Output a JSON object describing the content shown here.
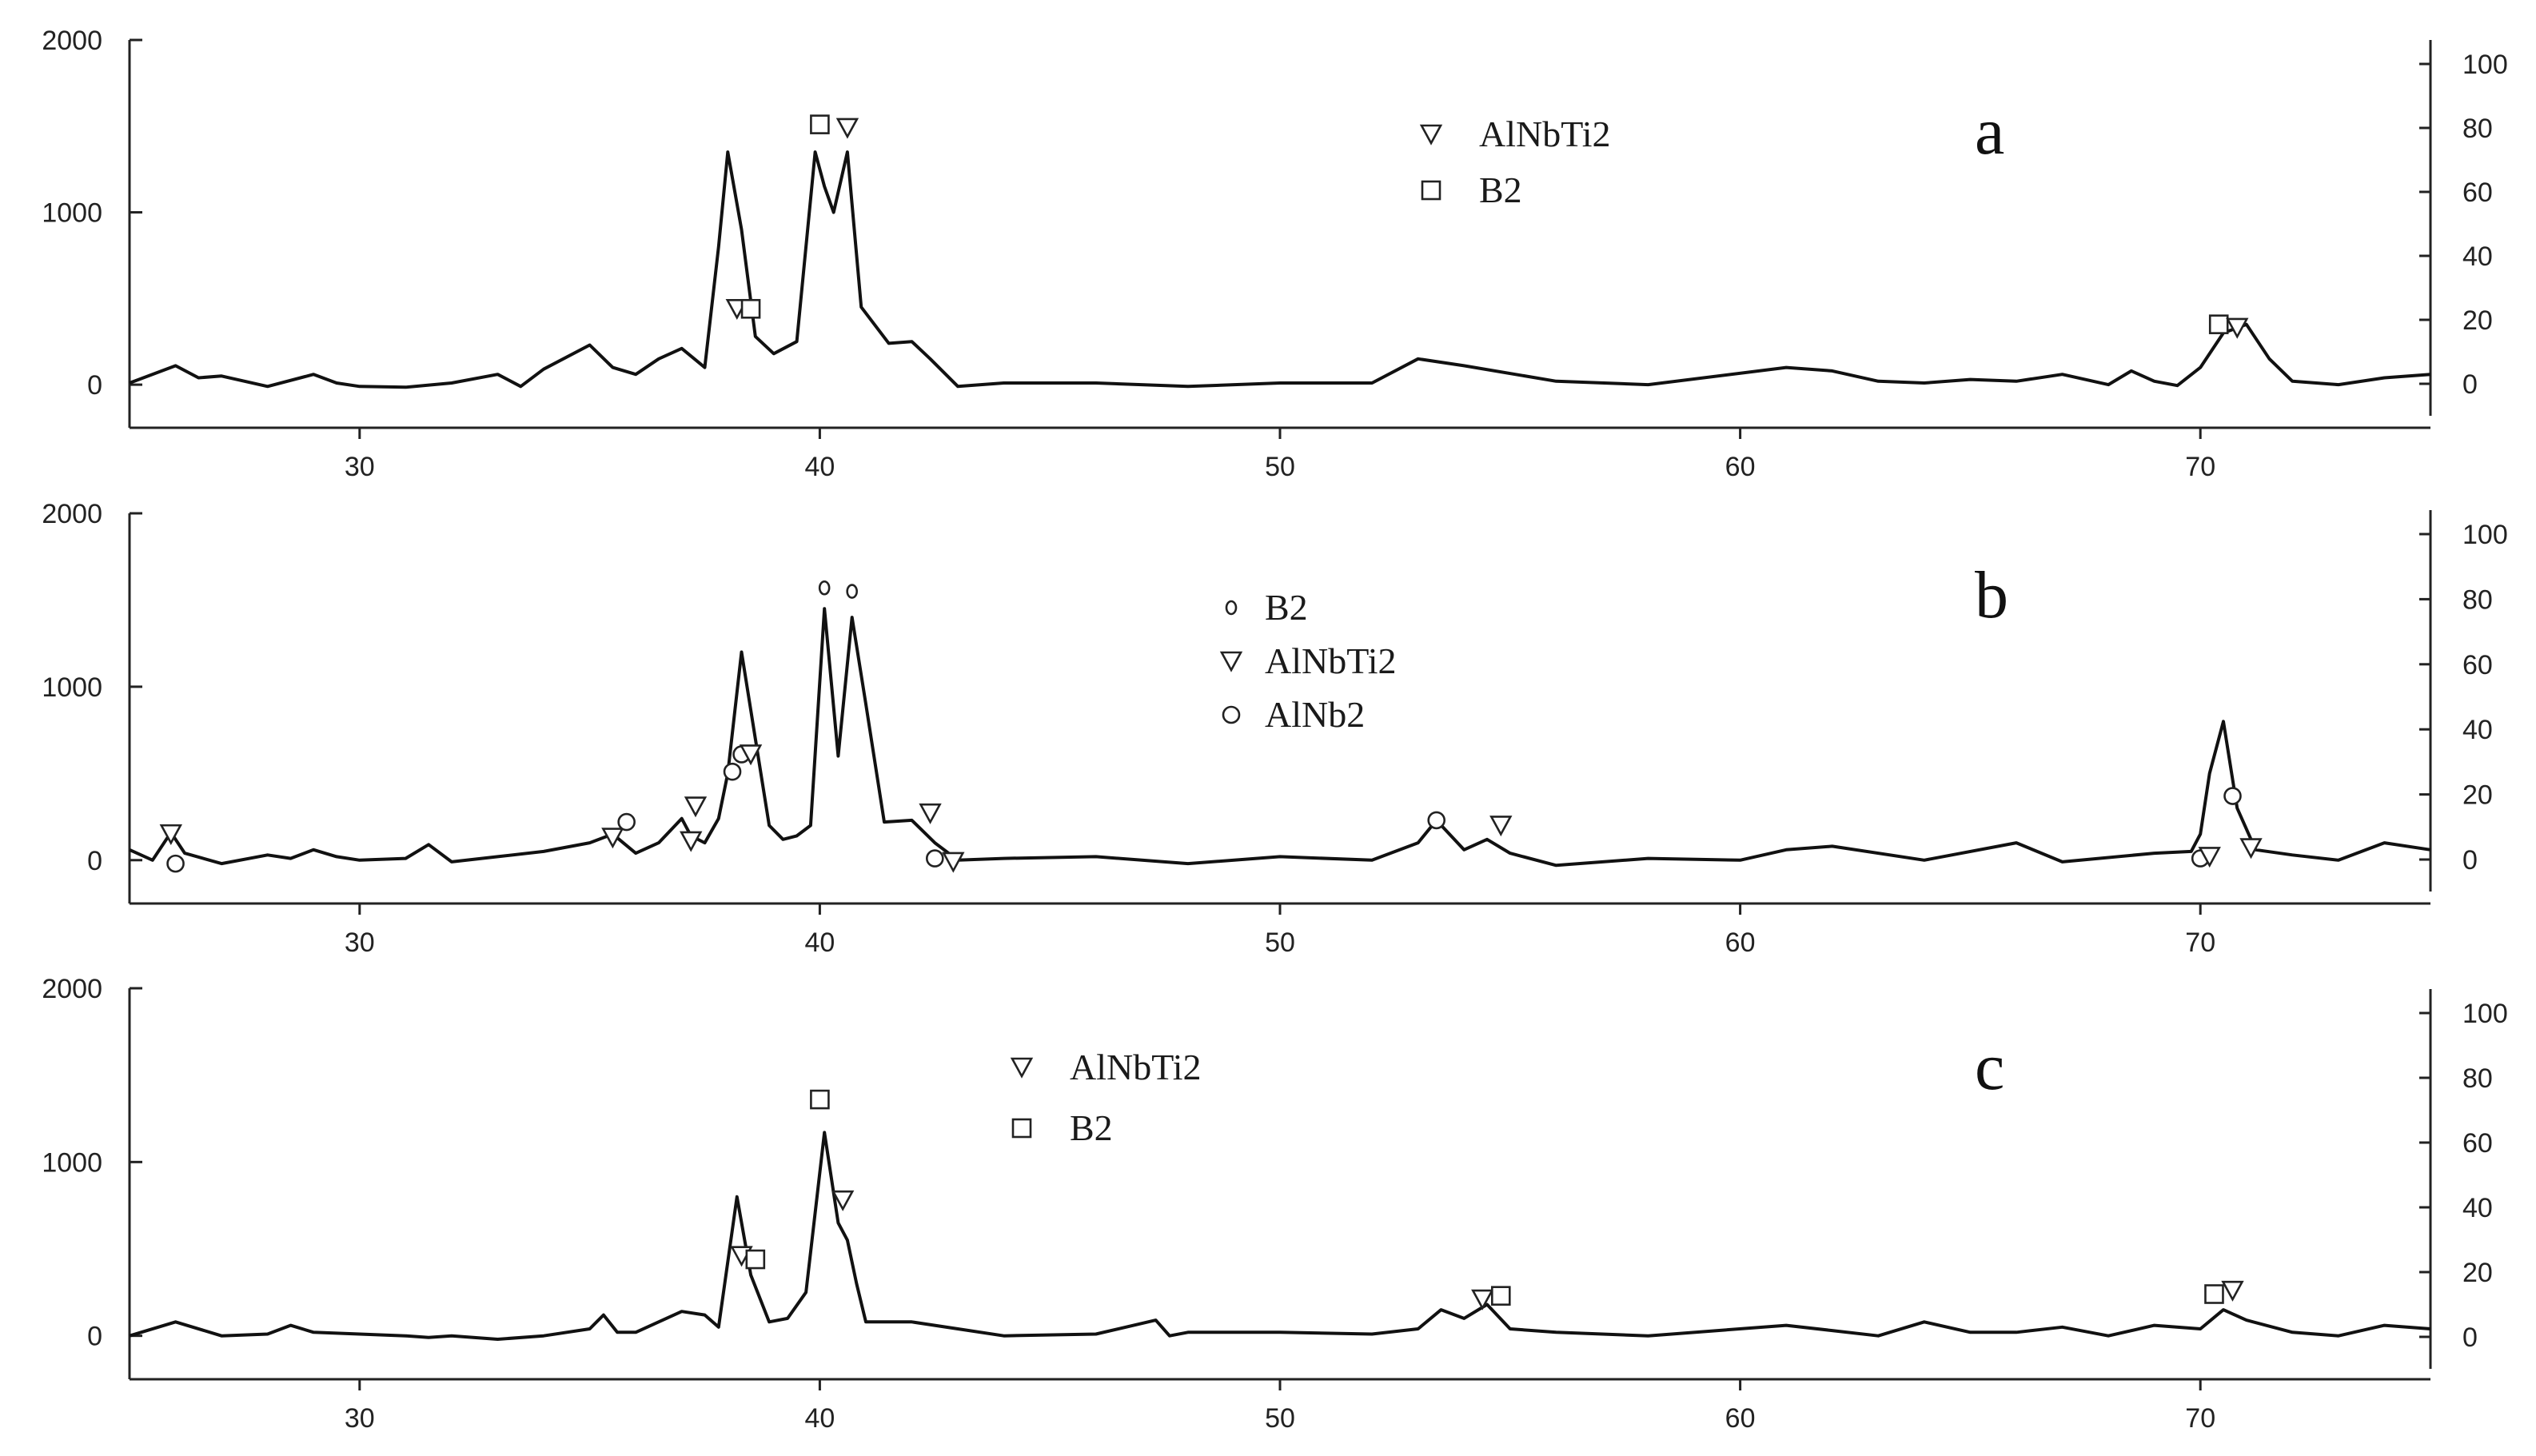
{
  "chart_data": [
    {
      "type": "line",
      "panel_label": "a",
      "x_ticks": [
        30,
        40,
        50,
        60,
        70
      ],
      "xlim": [
        25,
        75
      ],
      "y_left_ticks": [
        0,
        1000,
        2000
      ],
      "ylim_left": [
        -250,
        2000
      ],
      "y_right_ticks": [
        0,
        20,
        40,
        60,
        80,
        100
      ],
      "grid": false,
      "legend": {
        "position": "top-center",
        "entries": [
          {
            "marker": "triangle-down",
            "label": "AlNbTi2"
          },
          {
            "marker": "square",
            "label": "B2"
          }
        ]
      },
      "x": [
        25,
        26,
        26.5,
        27,
        28,
        29,
        29.5,
        30,
        31,
        32,
        33,
        33.5,
        34,
        35,
        35.5,
        36,
        36.5,
        37,
        37.5,
        37.8,
        38,
        38.3,
        38.6,
        39,
        39.5,
        39.9,
        40.1,
        40.3,
        40.6,
        40.9,
        41.5,
        42,
        42.4,
        43,
        44,
        46,
        48,
        50,
        52,
        53,
        54,
        56,
        58,
        61,
        62,
        63,
        64,
        65,
        66,
        67,
        68,
        68.5,
        69,
        69.5,
        70,
        70.5,
        71,
        71.5,
        72,
        73,
        74,
        75
      ],
      "y": [
        10,
        110,
        40,
        50,
        -10,
        60,
        10,
        -10,
        -15,
        10,
        60,
        -10,
        90,
        230,
        100,
        60,
        150,
        210,
        100,
        800,
        1350,
        900,
        280,
        180,
        250,
        1350,
        1150,
        1000,
        1350,
        450,
        240,
        250,
        150,
        -10,
        10,
        10,
        -10,
        10,
        10,
        150,
        110,
        20,
        0,
        100,
        80,
        20,
        10,
        30,
        20,
        60,
        0,
        80,
        20,
        -5,
        100,
        300,
        350,
        150,
        20,
        0,
        40,
        60
      ],
      "markers": [
        {
          "x": 38.2,
          "y": 440,
          "marker": "triangle-down"
        },
        {
          "x": 38.5,
          "y": 440,
          "marker": "square"
        },
        {
          "x": 40.0,
          "y": 1510,
          "marker": "square"
        },
        {
          "x": 40.6,
          "y": 1490,
          "marker": "triangle-down"
        },
        {
          "x": 70.4,
          "y": 350,
          "marker": "square"
        },
        {
          "x": 70.8,
          "y": 330,
          "marker": "triangle-down"
        }
      ]
    },
    {
      "type": "line",
      "panel_label": "b",
      "x_ticks": [
        30,
        40,
        50,
        60,
        70
      ],
      "xlim": [
        25,
        75
      ],
      "y_left_ticks": [
        0,
        1000,
        2000
      ],
      "ylim_left": [
        -250,
        2000
      ],
      "y_right_ticks": [
        0,
        20,
        40,
        60,
        80,
        100
      ],
      "grid": false,
      "legend": {
        "position": "top-center",
        "entries": [
          {
            "marker": "small-circle",
            "label": "B2"
          },
          {
            "marker": "triangle-down",
            "label": "AlNbTi2"
          },
          {
            "marker": "circle",
            "label": "AlNb2"
          }
        ]
      },
      "x": [
        25,
        25.5,
        25.9,
        26.2,
        27,
        28,
        28.5,
        29,
        29.5,
        30,
        31,
        31.5,
        32,
        33,
        34,
        35,
        35.5,
        36,
        36.5,
        37,
        37.2,
        37.5,
        37.8,
        38,
        38.3,
        38.6,
        38.9,
        39.2,
        39.5,
        39.8,
        40.1,
        40.4,
        40.7,
        41,
        41.4,
        42,
        42.5,
        43,
        44,
        46,
        48,
        50,
        52,
        53,
        53.4,
        54,
        54.5,
        55,
        56,
        58,
        60,
        61,
        62,
        64,
        66,
        67,
        69,
        69.8,
        70,
        70.2,
        70.5,
        70.8,
        71.2,
        72,
        73,
        74,
        75
      ],
      "y": [
        60,
        0,
        160,
        40,
        -20,
        30,
        10,
        60,
        20,
        0,
        10,
        90,
        -10,
        20,
        50,
        100,
        150,
        40,
        100,
        240,
        140,
        100,
        240,
        500,
        1200,
        700,
        200,
        120,
        140,
        200,
        1450,
        600,
        1400,
        900,
        220,
        230,
        100,
        0,
        10,
        20,
        -20,
        20,
        0,
        100,
        230,
        60,
        120,
        40,
        -30,
        10,
        0,
        60,
        80,
        0,
        100,
        -10,
        40,
        50,
        150,
        500,
        800,
        300,
        60,
        30,
        0,
        100,
        60
      ],
      "markers": [
        {
          "x": 25.9,
          "y": 150,
          "marker": "triangle-down"
        },
        {
          "x": 26.0,
          "y": -20,
          "marker": "circle"
        },
        {
          "x": 35.5,
          "y": 130,
          "marker": "triangle-down"
        },
        {
          "x": 35.8,
          "y": 220,
          "marker": "circle"
        },
        {
          "x": 37.2,
          "y": 110,
          "marker": "triangle-down"
        },
        {
          "x": 37.3,
          "y": 310,
          "marker": "triangle-down"
        },
        {
          "x": 38.1,
          "y": 510,
          "marker": "circle"
        },
        {
          "x": 38.3,
          "y": 610,
          "marker": "circle"
        },
        {
          "x": 38.5,
          "y": 610,
          "marker": "triangle-down"
        },
        {
          "x": 40.1,
          "y": 1570,
          "marker": "small-circle"
        },
        {
          "x": 40.7,
          "y": 1550,
          "marker": "small-circle"
        },
        {
          "x": 42.4,
          "y": 270,
          "marker": "triangle-down"
        },
        {
          "x": 42.5,
          "y": 10,
          "marker": "circle"
        },
        {
          "x": 42.9,
          "y": -10,
          "marker": "triangle-down"
        },
        {
          "x": 53.4,
          "y": 230,
          "marker": "circle"
        },
        {
          "x": 54.8,
          "y": 200,
          "marker": "triangle-down"
        },
        {
          "x": 70.0,
          "y": 10,
          "marker": "circle"
        },
        {
          "x": 70.2,
          "y": 20,
          "marker": "triangle-down"
        },
        {
          "x": 70.7,
          "y": 370,
          "marker": "circle"
        },
        {
          "x": 71.1,
          "y": 70,
          "marker": "triangle-down"
        }
      ]
    },
    {
      "type": "line",
      "panel_label": "c",
      "x_ticks": [
        30,
        40,
        50,
        60,
        70
      ],
      "xlim": [
        25,
        75
      ],
      "y_left_ticks": [
        0,
        1000,
        2000
      ],
      "ylim_left": [
        -250,
        2000
      ],
      "y_right_ticks": [
        0,
        20,
        40,
        60,
        80,
        100
      ],
      "grid": false,
      "legend": {
        "position": "top-center",
        "entries": [
          {
            "marker": "triangle-down",
            "label": "AlNbTi2"
          },
          {
            "marker": "square",
            "label": "B2"
          }
        ]
      },
      "x": [
        25,
        26,
        27,
        28,
        28.5,
        29,
        30,
        31,
        31.5,
        32,
        33,
        34,
        35,
        35.3,
        35.6,
        36,
        37,
        37.5,
        37.8,
        38.2,
        38.5,
        38.9,
        39.3,
        39.7,
        40.1,
        40.4,
        40.6,
        40.8,
        41,
        42,
        43,
        44,
        46,
        47.3,
        47.6,
        48,
        50,
        52,
        53,
        53.5,
        54,
        54.5,
        55,
        56,
        58,
        61,
        62,
        63,
        64,
        65,
        66,
        67,
        68,
        69,
        70,
        70.5,
        71,
        72,
        73,
        74,
        75
      ],
      "y": [
        0,
        80,
        0,
        10,
        60,
        20,
        10,
        0,
        -10,
        0,
        -20,
        0,
        40,
        120,
        20,
        20,
        140,
        120,
        50,
        800,
        350,
        80,
        100,
        250,
        1170,
        650,
        550,
        300,
        80,
        80,
        40,
        0,
        10,
        90,
        0,
        20,
        20,
        10,
        40,
        150,
        100,
        180,
        40,
        20,
        0,
        60,
        30,
        0,
        80,
        20,
        20,
        50,
        0,
        60,
        40,
        150,
        90,
        20,
        0,
        60,
        40
      ],
      "markers": [
        {
          "x": 38.3,
          "y": 460,
          "marker": "triangle-down"
        },
        {
          "x": 38.6,
          "y": 440,
          "marker": "square"
        },
        {
          "x": 40.0,
          "y": 1360,
          "marker": "square"
        },
        {
          "x": 40.5,
          "y": 780,
          "marker": "triangle-down"
        },
        {
          "x": 54.4,
          "y": 210,
          "marker": "triangle-down"
        },
        {
          "x": 54.8,
          "y": 230,
          "marker": "square"
        },
        {
          "x": 70.3,
          "y": 240,
          "marker": "square"
        },
        {
          "x": 70.7,
          "y": 260,
          "marker": "triangle-down"
        }
      ]
    }
  ]
}
